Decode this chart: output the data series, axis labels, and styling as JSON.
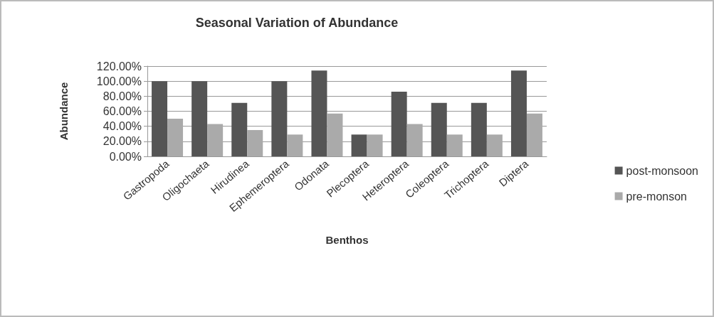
{
  "chart_data": {
    "type": "bar",
    "title": "Seasonal Variation of Abundance",
    "xlabel": "Benthos",
    "ylabel": "Abundance",
    "categories": [
      "Gastropoda",
      "Oligochaeta",
      "Hirudinea",
      "Ephemeroptera",
      "Odonata",
      "Plecoptera",
      "Heteroptera",
      "Coleoptera",
      "Trichoptera",
      "Diptera"
    ],
    "series": [
      {
        "name": "post-monsoon",
        "color": "#555555",
        "values": [
          100,
          100,
          71,
          100,
          114,
          29,
          86,
          71,
          71,
          114
        ]
      },
      {
        "name": "pre-monson",
        "color": "#aaaaaa",
        "values": [
          50,
          43,
          35,
          29,
          57,
          29,
          43,
          29,
          29,
          57
        ]
      }
    ],
    "ylim": [
      0,
      120
    ],
    "yticks": [
      {
        "value": 0,
        "label": "0.00%"
      },
      {
        "value": 20,
        "label": "20.00%"
      },
      {
        "value": 40,
        "label": "40.00%"
      },
      {
        "value": 60,
        "label": "60.00%"
      },
      {
        "value": 80,
        "label": "80.00%"
      },
      {
        "value": 100,
        "label": "100.00%"
      },
      {
        "value": 120,
        "label": "120.00%"
      }
    ],
    "grid": "y",
    "legend": "right"
  }
}
